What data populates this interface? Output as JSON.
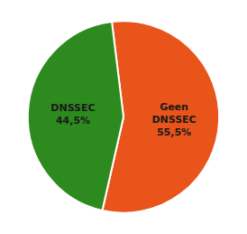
{
  "chart_data": {
    "type": "pie",
    "categories": [
      "Geen\nDNSSEC\n55,5%",
      "DNSSEC\n44,5%"
    ],
    "values": [
      55.5,
      44.5
    ],
    "colors": [
      "#e8541a",
      "#2d8a1e"
    ],
    "legend": false
  }
}
